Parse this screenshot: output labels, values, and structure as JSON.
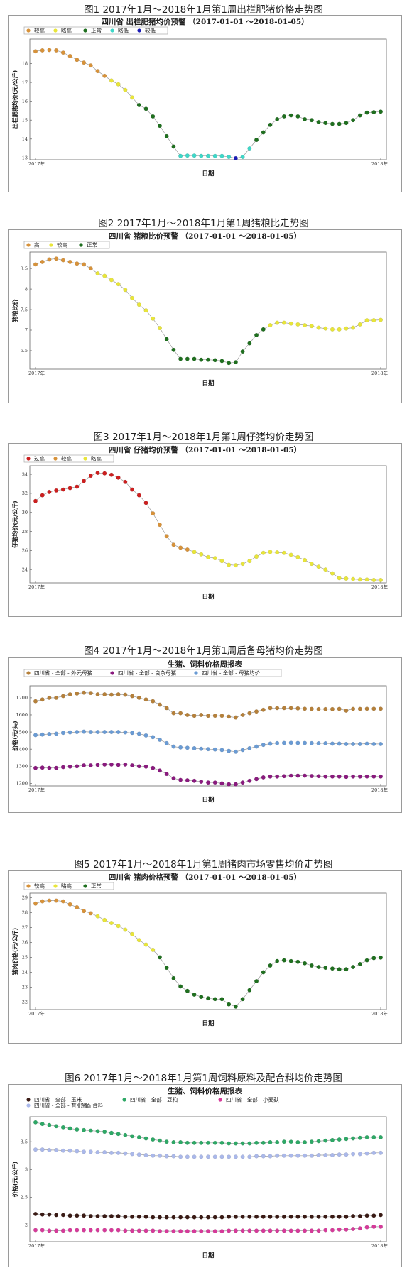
{
  "figures": [
    {
      "caption": "图1 2017年1月～2018年1月第1周出栏肥猪价格走势图",
      "panel_title": "四川省 出栏肥猪均价预警 （2017-01-01 ～2018-01-05）",
      "legend": [
        {
          "label": "较高",
          "color": "#d7923a"
        },
        {
          "label": "略高",
          "color": "#e8e53a"
        },
        {
          "label": "正常",
          "color": "#1f6f1f"
        },
        {
          "label": "略低",
          "color": "#3fd7c8"
        },
        {
          "label": "较低",
          "color": "#1a1ab5"
        }
      ],
      "ylabel": "出栏肥猪均价(元/公斤)",
      "xlabel": "日期",
      "x_start": "2017年",
      "x_end": "2018年"
    },
    {
      "caption": "图2 2017年1月～2018年1月第1周猪粮比走势图",
      "panel_title": "四川省 猪粮比价预警 （2017-01-01 ～2018-01-05）",
      "legend": [
        {
          "label": "高",
          "color": "#d7923a"
        },
        {
          "label": "较高",
          "color": "#e8e53a"
        },
        {
          "label": "正常",
          "color": "#1f6f1f"
        }
      ],
      "ylabel": "猪粮比价",
      "xlabel": "日期",
      "x_start": "2017年",
      "x_end": "2018年"
    },
    {
      "caption": "图3 2017年1月～2018年1月第1周仔猪均价走势图",
      "panel_title": "四川省 仔猪均价预警 （2017-01-01 ～2018-01-05）",
      "legend": [
        {
          "label": "过高",
          "color": "#cc1f1f"
        },
        {
          "label": "较高",
          "color": "#d7923a"
        },
        {
          "label": "略高",
          "color": "#e8e53a"
        }
      ],
      "ylabel": "仔猪均价(元/公斤)",
      "xlabel": "日期",
      "x_start": "2017年",
      "x_end": "2018年"
    },
    {
      "caption": "图4 2017年1月～2018年1月第1周后备母猪均价走势图",
      "panel_title": "生猪、饲料价格周报表",
      "legend": [
        {
          "label": "四川省 - 全部 - 外元母猪",
          "color": "#b5803a"
        },
        {
          "label": "四川省 - 全部 - 良杂母猪",
          "color": "#8a1a7e"
        },
        {
          "label": "四川省 - 全部 - 母猪均价",
          "color": "#6a9bd4"
        }
      ],
      "ylabel": "价格(元/头)",
      "xlabel": "日期",
      "x_start": "2017年",
      "x_end": "2018年"
    },
    {
      "caption": "图5 2017年1月～2018年1月第1周猪肉市场零售均价走势图",
      "panel_title": "四川省 猪肉价格预警 （2017-01-01 ～2018-01-05）",
      "legend": [
        {
          "label": "较高",
          "color": "#d7923a"
        },
        {
          "label": "略高",
          "color": "#e8e53a"
        },
        {
          "label": "正常",
          "color": "#1f6f1f"
        }
      ],
      "ylabel": "猪肉价格(元/公斤)",
      "xlabel": "日期",
      "x_start": "2017年",
      "x_end": "2018年"
    },
    {
      "caption": "图6 2017年1月～2018年1月第1周饲料原料及配合料均价走势图",
      "panel_title": "生猪、饲料价格周报表",
      "legend": [
        {
          "label": "四川省 - 全部 - 玉米",
          "color": "#3a1a14"
        },
        {
          "label": "四川省 - 全部 - 豆粕",
          "color": "#2ea866"
        },
        {
          "label": "四川省 - 全部 - 小麦麸",
          "color": "#d63a9a"
        },
        {
          "label": "四川省 - 全部 - 育肥猪配合料",
          "color": "#aab8ea"
        }
      ],
      "ylabel": "价格(元/公斤)",
      "xlabel": "日期",
      "x_start": "2017年",
      "x_end": "2018年"
    }
  ],
  "chart_data": [
    {
      "type": "scatter",
      "title": "四川省 出栏肥猪均价预警 （2017-01-01 ～2018-01-05）",
      "xlabel": "日期",
      "ylabel": "出栏肥猪均价(元/公斤)",
      "ylim": [
        12.9,
        19.3
      ],
      "yticks": [
        13,
        14,
        15,
        16,
        17,
        18
      ],
      "y": [
        18.65,
        18.7,
        18.72,
        18.7,
        18.58,
        18.4,
        18.2,
        18.05,
        17.9,
        17.6,
        17.35,
        17.1,
        16.9,
        16.6,
        16.2,
        15.8,
        15.6,
        15.2,
        14.7,
        14.15,
        13.6,
        13.1,
        13.12,
        13.12,
        13.1,
        13.1,
        13.1,
        13.1,
        13.05,
        12.98,
        13.05,
        13.5,
        13.95,
        14.35,
        14.75,
        15.05,
        15.2,
        15.25,
        15.2,
        15.05,
        15.0,
        14.9,
        14.85,
        14.8,
        14.8,
        14.85,
        15.0,
        15.25,
        15.4,
        15.42,
        15.45
      ],
      "colors": [
        0,
        0,
        0,
        0,
        0,
        0,
        0,
        0,
        0,
        0,
        0,
        1,
        1,
        1,
        1,
        2,
        2,
        2,
        2,
        2,
        2,
        3,
        3,
        3,
        3,
        3,
        3,
        3,
        3,
        4,
        3,
        3,
        2,
        2,
        2,
        2,
        2,
        2,
        2,
        2,
        2,
        2,
        2,
        2,
        2,
        2,
        2,
        2,
        2,
        2,
        2
      ],
      "palette": [
        "#d7923a",
        "#e8e53a",
        "#1f6f1f",
        "#3fd7c8",
        "#1a1ab5"
      ]
    },
    {
      "type": "scatter",
      "title": "四川省 猪粮比价预警 （2017-01-01 ～2018-01-05）",
      "xlabel": "日期",
      "ylabel": "猪粮比价",
      "ylim": [
        6.05,
        8.9
      ],
      "yticks": [
        6.5,
        7.0,
        7.5,
        8.0,
        8.5
      ],
      "y": [
        8.6,
        8.66,
        8.72,
        8.74,
        8.7,
        8.66,
        8.62,
        8.6,
        8.5,
        8.38,
        8.32,
        8.22,
        8.12,
        7.98,
        7.78,
        7.62,
        7.48,
        7.28,
        7.05,
        6.78,
        6.52,
        6.3,
        6.3,
        6.3,
        6.28,
        6.28,
        6.27,
        6.25,
        6.2,
        6.22,
        6.48,
        6.68,
        6.88,
        7.02,
        7.12,
        7.18,
        7.18,
        7.16,
        7.14,
        7.12,
        7.1,
        7.06,
        7.04,
        7.02,
        7.02,
        7.04,
        7.06,
        7.14,
        7.24,
        7.24,
        7.25
      ],
      "colors": [
        0,
        0,
        0,
        0,
        0,
        0,
        0,
        0,
        0,
        1,
        1,
        1,
        1,
        1,
        1,
        1,
        1,
        1,
        1,
        2,
        2,
        2,
        2,
        2,
        2,
        2,
        2,
        2,
        2,
        2,
        2,
        2,
        2,
        2,
        1,
        1,
        1,
        1,
        1,
        1,
        1,
        1,
        1,
        1,
        1,
        1,
        1,
        1,
        1,
        1,
        1
      ],
      "palette": [
        "#d7923a",
        "#e8e53a",
        "#1f6f1f"
      ]
    },
    {
      "type": "scatter",
      "title": "四川省 仔猪均价预警 （2017-01-01 ～2018-01-05）",
      "xlabel": "日期",
      "ylabel": "仔猪均价(元/公斤)",
      "ylim": [
        22.6,
        34.9
      ],
      "yticks": [
        24,
        26,
        28,
        30,
        32,
        34
      ],
      "y": [
        31.2,
        31.8,
        32.15,
        32.3,
        32.4,
        32.55,
        32.7,
        33.3,
        33.85,
        34.15,
        34.1,
        33.95,
        33.65,
        33.2,
        32.4,
        31.8,
        31.0,
        29.9,
        28.7,
        27.5,
        26.6,
        26.3,
        26.1,
        25.85,
        25.6,
        25.3,
        25.2,
        24.9,
        24.5,
        24.45,
        24.6,
        24.9,
        25.35,
        25.75,
        25.85,
        25.8,
        25.75,
        25.55,
        25.3,
        25.0,
        24.6,
        24.3,
        24.0,
        23.6,
        23.1,
        23.05,
        23.0,
        22.95,
        22.95,
        22.9,
        22.9
      ],
      "colors": [
        0,
        0,
        0,
        0,
        0,
        0,
        0,
        0,
        0,
        0,
        0,
        0,
        0,
        0,
        0,
        0,
        0,
        1,
        1,
        1,
        1,
        1,
        1,
        2,
        2,
        2,
        2,
        2,
        2,
        2,
        2,
        2,
        2,
        2,
        2,
        2,
        2,
        2,
        2,
        2,
        2,
        2,
        2,
        2,
        2,
        2,
        2,
        2,
        2,
        2,
        2
      ],
      "palette": [
        "#cc1f1f",
        "#d7923a",
        "#e8e53a"
      ]
    },
    {
      "type": "scatter",
      "title": "生猪、饲料价格周报表",
      "xlabel": "日期",
      "ylabel": "价格(元/头)",
      "ylim": [
        1185,
        1770
      ],
      "yticks": [
        1200,
        1300,
        1400,
        1500,
        1600,
        1700
      ],
      "series": [
        {
          "name": "四川省 - 全部 - 外元母猪",
          "color": "#b5803a",
          "y": [
            1680,
            1690,
            1700,
            1700,
            1710,
            1720,
            1725,
            1730,
            1728,
            1720,
            1720,
            1718,
            1720,
            1718,
            1710,
            1700,
            1690,
            1680,
            1660,
            1640,
            1610,
            1610,
            1600,
            1595,
            1600,
            1595,
            1595,
            1595,
            1590,
            1585,
            1600,
            1610,
            1620,
            1630,
            1640,
            1640,
            1640,
            1640,
            1638,
            1636,
            1635,
            1634,
            1634,
            1634,
            1635,
            1625,
            1635,
            1635,
            1636,
            1636,
            1636
          ]
        },
        {
          "name": "四川省 - 全部 - 良杂母猪",
          "color": "#8a1a7e",
          "y": [
            1290,
            1292,
            1290,
            1290,
            1295,
            1298,
            1300,
            1305,
            1305,
            1308,
            1310,
            1310,
            1308,
            1310,
            1305,
            1300,
            1298,
            1290,
            1275,
            1255,
            1230,
            1220,
            1218,
            1215,
            1210,
            1205,
            1205,
            1200,
            1195,
            1195,
            1205,
            1215,
            1225,
            1235,
            1240,
            1240,
            1242,
            1245,
            1245,
            1245,
            1243,
            1242,
            1240,
            1240,
            1240,
            1238,
            1240,
            1240,
            1240,
            1240,
            1240
          ]
        },
        {
          "name": "四川省 - 全部 - 母猪均价",
          "color": "#6a9bd4",
          "y": [
            1482,
            1485,
            1488,
            1490,
            1495,
            1498,
            1500,
            1502,
            1500,
            1500,
            1500,
            1500,
            1500,
            1498,
            1495,
            1490,
            1480,
            1470,
            1455,
            1435,
            1415,
            1410,
            1408,
            1405,
            1402,
            1400,
            1398,
            1395,
            1390,
            1385,
            1395,
            1405,
            1415,
            1425,
            1432,
            1435,
            1436,
            1437,
            1436,
            1436,
            1435,
            1434,
            1434,
            1432,
            1432,
            1430,
            1430,
            1430,
            1432,
            1430,
            1430
          ]
        }
      ]
    },
    {
      "type": "scatter",
      "title": "四川省 猪肉价格预警 （2017-01-01 ～2018-01-05）",
      "xlabel": "日期",
      "ylabel": "猪肉价格(元/公斤)",
      "ylim": [
        21.5,
        29.3
      ],
      "yticks": [
        22,
        23,
        24,
        25,
        26,
        27,
        28,
        29
      ],
      "y": [
        28.6,
        28.75,
        28.8,
        28.8,
        28.75,
        28.55,
        28.35,
        28.1,
        27.95,
        27.75,
        27.5,
        27.3,
        27.1,
        26.85,
        26.55,
        26.15,
        25.85,
        25.5,
        25.0,
        24.3,
        23.6,
        23.05,
        22.75,
        22.5,
        22.35,
        22.25,
        22.2,
        22.2,
        21.85,
        21.7,
        22.2,
        22.8,
        23.4,
        24.0,
        24.45,
        24.75,
        24.8,
        24.75,
        24.7,
        24.6,
        24.45,
        24.35,
        24.3,
        24.25,
        24.2,
        24.2,
        24.35,
        24.55,
        24.8,
        24.95,
        24.98
      ],
      "colors": [
        0,
        0,
        0,
        0,
        0,
        0,
        0,
        0,
        0,
        1,
        1,
        1,
        1,
        1,
        1,
        1,
        1,
        1,
        2,
        2,
        2,
        2,
        2,
        2,
        2,
        2,
        2,
        2,
        2,
        2,
        2,
        2,
        2,
        2,
        2,
        2,
        2,
        2,
        2,
        2,
        2,
        2,
        2,
        2,
        2,
        2,
        2,
        2,
        2,
        2,
        2
      ],
      "palette": [
        "#d7923a",
        "#e8e53a",
        "#1f6f1f"
      ]
    },
    {
      "type": "scatter",
      "title": "生猪、饲料价格周报表",
      "xlabel": "日期",
      "ylabel": "价格(元/公斤)",
      "ylim": [
        1.7,
        3.95
      ],
      "yticks": [
        2.0,
        2.5,
        3.0,
        3.5
      ],
      "series": [
        {
          "name": "四川省 - 全部 - 玉米",
          "color": "#3a1a14",
          "y": [
            2.2,
            2.19,
            2.19,
            2.18,
            2.18,
            2.17,
            2.17,
            2.17,
            2.16,
            2.16,
            2.16,
            2.16,
            2.16,
            2.15,
            2.15,
            2.15,
            2.15,
            2.14,
            2.14,
            2.14,
            2.14,
            2.14,
            2.14,
            2.14,
            2.14,
            2.14,
            2.14,
            2.14,
            2.15,
            2.15,
            2.15,
            2.15,
            2.15,
            2.15,
            2.15,
            2.15,
            2.15,
            2.15,
            2.15,
            2.15,
            2.15,
            2.15,
            2.15,
            2.15,
            2.15,
            2.15,
            2.16,
            2.16,
            2.17,
            2.17,
            2.18
          ]
        },
        {
          "name": "四川省 - 全部 - 豆粕",
          "color": "#2ea866",
          "y": [
            3.85,
            3.82,
            3.8,
            3.78,
            3.76,
            3.74,
            3.72,
            3.71,
            3.7,
            3.69,
            3.68,
            3.66,
            3.64,
            3.62,
            3.6,
            3.58,
            3.56,
            3.54,
            3.52,
            3.5,
            3.49,
            3.49,
            3.48,
            3.48,
            3.48,
            3.48,
            3.48,
            3.48,
            3.47,
            3.47,
            3.47,
            3.47,
            3.48,
            3.48,
            3.49,
            3.49,
            3.5,
            3.5,
            3.49,
            3.49,
            3.5,
            3.51,
            3.52,
            3.53,
            3.54,
            3.55,
            3.56,
            3.57,
            3.58,
            3.58,
            3.58
          ]
        },
        {
          "name": "四川省 - 全部 - 小麦麸",
          "color": "#d63a9a",
          "y": [
            1.91,
            1.91,
            1.9,
            1.9,
            1.9,
            1.91,
            1.91,
            1.91,
            1.91,
            1.91,
            1.91,
            1.91,
            1.91,
            1.9,
            1.9,
            1.9,
            1.9,
            1.9,
            1.89,
            1.89,
            1.89,
            1.89,
            1.89,
            1.89,
            1.89,
            1.89,
            1.89,
            1.89,
            1.9,
            1.9,
            1.9,
            1.9,
            1.9,
            1.9,
            1.9,
            1.9,
            1.9,
            1.9,
            1.9,
            1.9,
            1.9,
            1.9,
            1.91,
            1.91,
            1.92,
            1.92,
            1.93,
            1.94,
            1.96,
            1.97,
            1.97
          ]
        },
        {
          "name": "四川省 - 全部 - 育肥猪配合料",
          "color": "#aab8ea",
          "y": [
            3.36,
            3.36,
            3.35,
            3.35,
            3.34,
            3.34,
            3.33,
            3.32,
            3.32,
            3.31,
            3.31,
            3.3,
            3.3,
            3.29,
            3.28,
            3.27,
            3.26,
            3.25,
            3.25,
            3.24,
            3.24,
            3.23,
            3.23,
            3.23,
            3.23,
            3.23,
            3.23,
            3.23,
            3.23,
            3.23,
            3.23,
            3.23,
            3.24,
            3.24,
            3.24,
            3.25,
            3.25,
            3.25,
            3.25,
            3.25,
            3.25,
            3.26,
            3.26,
            3.26,
            3.27,
            3.27,
            3.28,
            3.28,
            3.29,
            3.3,
            3.3
          ]
        }
      ]
    }
  ]
}
